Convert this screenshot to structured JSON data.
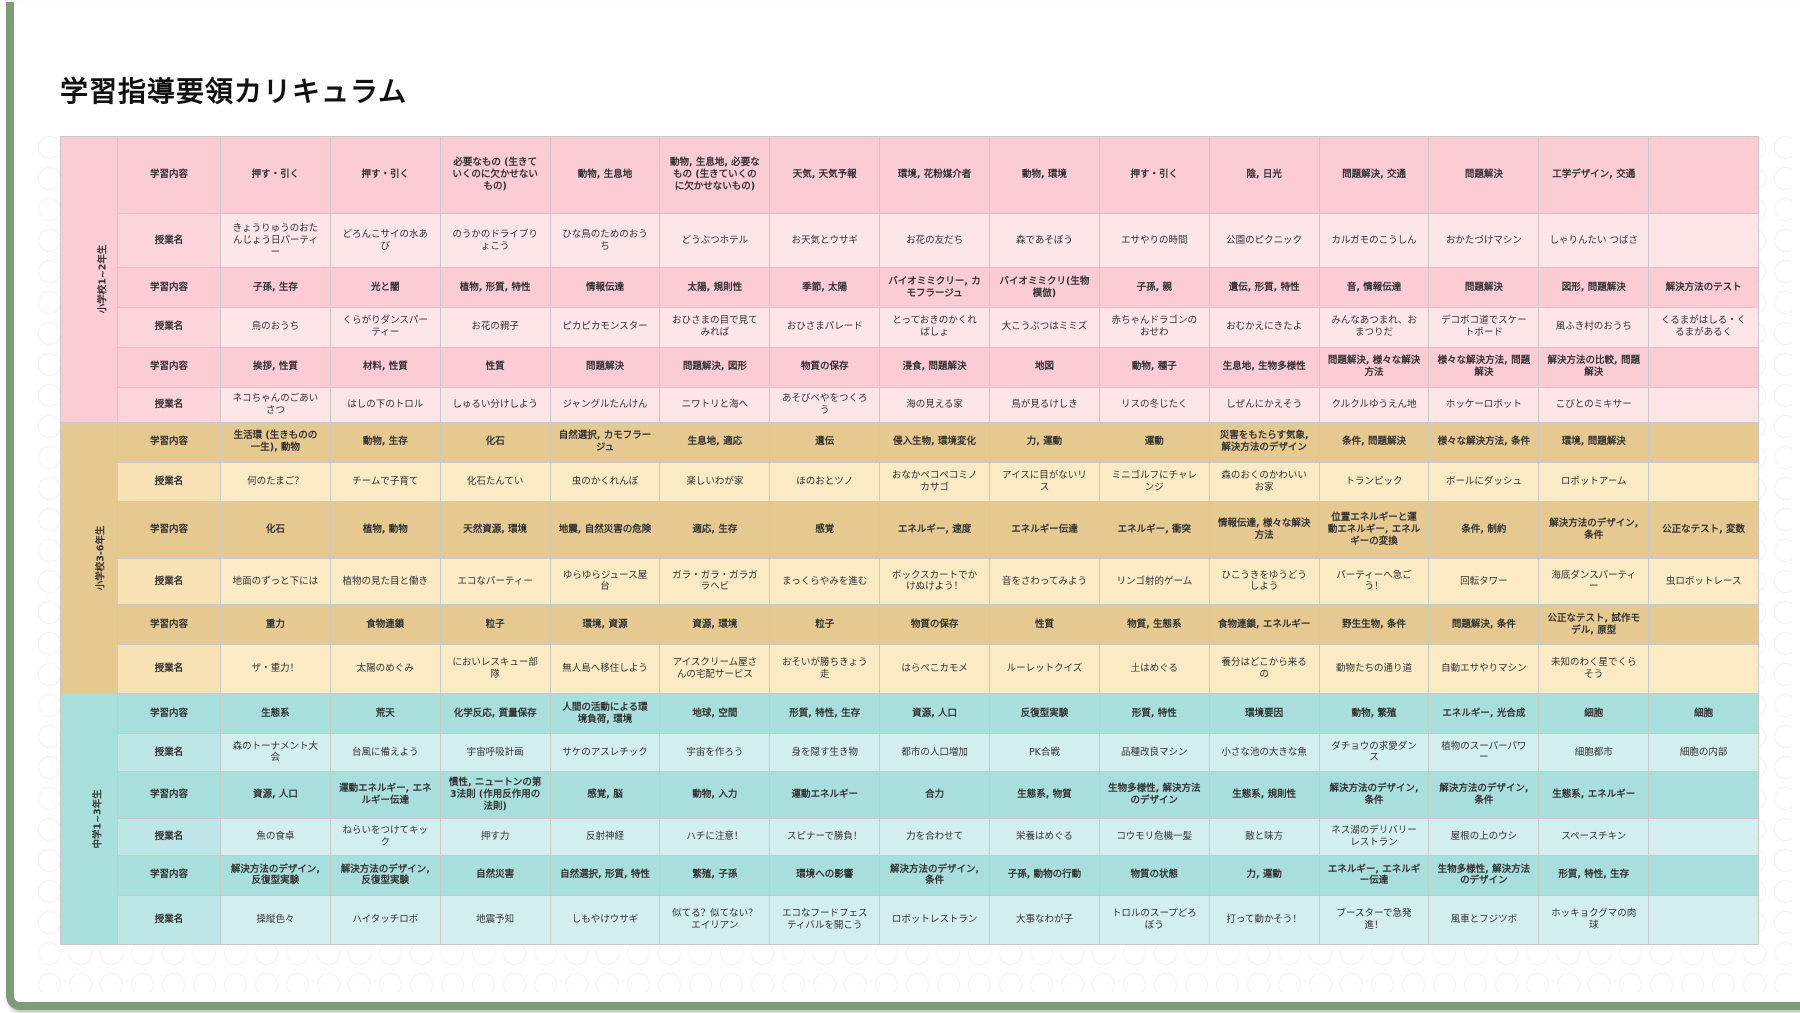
{
  "title": "学習指導要領カリキュラム",
  "sections": [
    {
      "grade": "小学校1~2年生",
      "rows": [
        {
          "label": "学習内容",
          "cells": [
            "押す・引く",
            "押す・引く",
            "必要なもの (生きていくのに欠かせないもの)",
            "動物, 生息地",
            "動物, 生息地, 必要なもの (生きていくのに欠かせないもの)",
            "天気, 天気予報",
            "環境, 花粉媒介者",
            "動物, 環境",
            "押す・引く",
            "陰, 日光",
            "問題解決, 交通",
            "問題解決",
            "工学デザイン, 交通",
            ""
          ]
        },
        {
          "label": "授業名",
          "cells": [
            "きょうりゅうのおたんじょう日パーティー",
            "どろんこサイの水あび",
            "のうかのドライブりょこう",
            "ひな鳥のためのおうち",
            "どうぶつホテル",
            "お天気とウサギ",
            "お花の友だち",
            "森であそぼう",
            "エサやりの時間",
            "公園のピクニック",
            "カルガモのこうしん",
            "おかたづけマシン",
            "しゃりんたい つばさ",
            ""
          ]
        },
        {
          "label": "学習内容",
          "cells": [
            "子孫, 生存",
            "光と闇",
            "植物, 形質, 特性",
            "情報伝達",
            "太陽, 規則性",
            "季節, 太陽",
            "バイオミミクリー, カモフラージュ",
            "バイオミミクリ(生物模倣)",
            "子孫, 親",
            "遺伝, 形質, 特性",
            "音, 情報伝達",
            "問題解決",
            "図形, 問題解決",
            "解決方法のテスト"
          ]
        },
        {
          "label": "授業名",
          "cells": [
            "鳥のおうち",
            "くらがりダンスパーティー",
            "お花の親子",
            "ピカピカモンスター",
            "おひさまの目で見てみれば",
            "おひさまパレード",
            "とっておきのかくればしょ",
            "大こうぶつはミミズ",
            "赤ちゃんドラゴンのおせわ",
            "おむかえにきたよ",
            "みんなあつまれ、おまつりだ",
            "デコボコ道でスケートボード",
            "風ふき村のおうち",
            "くるまがはしる・くるまがあるく"
          ]
        },
        {
          "label": "学習内容",
          "cells": [
            "挨拶, 性質",
            "材料, 性質",
            "性質",
            "問題解決",
            "問題解決, 図形",
            "物質の保存",
            "浸食, 問題解決",
            "地図",
            "動物, 種子",
            "生息地, 生物多様性",
            "問題解決, 様々な解決方法",
            "様々な解決方法, 問題解決",
            "解決方法の比較, 問題解決",
            ""
          ]
        },
        {
          "label": "授業名",
          "cells": [
            "ネコちゃんのごあいさつ",
            "はしの下のトロル",
            "しゅるい分けしよう",
            "ジャングルたんけん",
            "ニワトリと海へ",
            "あそびベやをつくろう",
            "海の見える家",
            "鳥が見るけしき",
            "リスの冬じたく",
            "しぜんにかえそう",
            "クルクルゆうえん地",
            "ホッケーロボット",
            "こびとのミキサー",
            ""
          ]
        }
      ]
    },
    {
      "grade": "小学校3-6年生",
      "rows": [
        {
          "label": "学習内容",
          "cells": [
            "生活環 (生きものの一生), 動物",
            "動物, 生存",
            "化石",
            "自然選択, カモフラージュ",
            "生息地, 適応",
            "遺伝",
            "侵入生物, 環境変化",
            "力, 運動",
            "運動",
            "災害をもたらす気象, 解決方法のデザイン",
            "条件, 問題解決",
            "様々な解決方法, 条件",
            "環境, 問題解決",
            ""
          ]
        },
        {
          "label": "授業名",
          "cells": [
            "何のたまご？",
            "チームで子育て",
            "化石たんてい",
            "虫のかくれんぼ",
            "楽しいわが家",
            "ほのおとツノ",
            "おなかペコペコミノカサゴ",
            "アイスに目がないリス",
            "ミニゴルフにチャレンジ",
            "森のおくのかわいいお家",
            "トランピック",
            "ボールにダッシュ",
            "ロボットアーム",
            ""
          ]
        },
        {
          "label": "学習内容",
          "cells": [
            "化石",
            "植物, 動物",
            "天然資源, 環境",
            "地震, 自然災害の危険",
            "適応, 生存",
            "感覚",
            "エネルギー, 速度",
            "エネルギー伝達",
            "エネルギー, 衝突",
            "情報伝達, 様々な解決方法",
            "位置エネルギーと運動エネルギー, エネルギーの変換",
            "条件, 制約",
            "解決方法のデザイン, 条件",
            "公正なテスト, 変数"
          ]
        },
        {
          "label": "授業名",
          "cells": [
            "地面のずっと下には",
            "植物の見た目と働き",
            "エコなパーティー",
            "ゆらゆらジュース屋台",
            "ガラ・ガラ・ガラガラヘビ",
            "まっくらやみを進む",
            "ボックスカートでかけぬけよう！",
            "音をさわってみよう",
            "リンゴ射的ゲーム",
            "ひこうきをゆうどうしよう",
            "パーティーへ急ごう！",
            "回転タワー",
            "海底ダンスパーティー",
            "虫ロボットレース"
          ]
        },
        {
          "label": "学習内容",
          "cells": [
            "重力",
            "食物連鎖",
            "粒子",
            "環境, 資源",
            "資源, 環境",
            "粒子",
            "物質の保存",
            "性質",
            "物質, 生態系",
            "食物連鎖, エネルギー",
            "野生生物, 条件",
            "問題解決, 条件",
            "公正なテスト, 試作モデル, 原型",
            ""
          ]
        },
        {
          "label": "授業名",
          "cells": [
            "ザ・重力！",
            "太陽のめぐみ",
            "においレスキュー部隊",
            "無人島へ移住しよう",
            "アイスクリーム屋さんの宅配サービス",
            "おそいが勝ちきょう走",
            "はらぺこカモメ",
            "ルーレットクイズ",
            "土はめぐる",
            "養分はどこから来るの",
            "動物たちの通り道",
            "自動エサやりマシン",
            "未知のわく星でくらそう",
            ""
          ]
        }
      ]
    },
    {
      "grade": "中学1~3年生",
      "rows": [
        {
          "label": "学習内容",
          "cells": [
            "生態系",
            "荒天",
            "化学反応, 質量保存",
            "人間の活動による環境負荷, 環境",
            "地球, 空間",
            "形質, 特性, 生存",
            "資源, 人口",
            "反復型実験",
            "形質, 特性",
            "環境要因",
            "動物, 繁殖",
            "エネルギー, 光合成",
            "細胞",
            "細胞"
          ]
        },
        {
          "label": "授業名",
          "cells": [
            "森のトーナメント大会",
            "台風に備えよう",
            "宇宙呼吸計画",
            "サケのアスレチック",
            "宇宙を作ろう",
            "身を隠す生き物",
            "都市の人口増加",
            "PK合戦",
            "品種改良マシン",
            "小さな池の大きな魚",
            "ダチョウの求愛ダンス",
            "植物のスーパーパワー",
            "細胞都市",
            "細胞の内部"
          ]
        },
        {
          "label": "学習内容",
          "cells": [
            "資源, 人口",
            "運動エネルギー, エネルギー伝達",
            "慣性, ニュートンの第3法則 (作用反作用の法則)",
            "感覚, 脳",
            "動物, 入力",
            "運動エネルギー",
            "合力",
            "生態系, 物質",
            "生物多様性, 解決方法のデザイン",
            "生態系, 規則性",
            "解決方法のデザイン, 条件",
            "解決方法のデザイン, 条件",
            "生態系, エネルギー",
            ""
          ]
        },
        {
          "label": "授業名",
          "cells": [
            "魚の食卓",
            "ねらいをつけてキック",
            "押す力",
            "反射神経",
            "ハチに注意！",
            "スピナーで勝負！",
            "力を合わせて",
            "栄養はめぐる",
            "コウモリ危機一髪",
            "敵と味方",
            "ネス湖のデリバリーレストラン",
            "屋根の上のウシ",
            "スペースチキン",
            ""
          ]
        },
        {
          "label": "学習内容",
          "cells": [
            "解決方法のデザイン, 反復型実験",
            "解決方法のデザイン, 反復型実験",
            "自然災害",
            "自然選択, 形質, 特性",
            "繁殖, 子孫",
            "環境への影響",
            "解決方法のデザイン, 条件",
            "子孫, 動物の行動",
            "物質の状態",
            "力, 運動",
            "エネルギー, エネルギー伝達",
            "生物多様性, 解決方法のデザイン",
            "形質, 特性, 生存",
            ""
          ]
        },
        {
          "label": "授業名",
          "cells": [
            "操縦色々",
            "ハイタッチロボ",
            "地震予知",
            "しもやけウサギ",
            "似てる？似てない？エイリアン",
            "エコなフードフェスティバルを開こう",
            "ロボットレストラン",
            "大事なわが子",
            "トロルのスープどろぼう",
            "打って動かそう！",
            "ブースターで急発進！",
            "風車とフジツボ",
            "ホッキョクグマの肉球",
            ""
          ]
        }
      ]
    }
  ]
}
